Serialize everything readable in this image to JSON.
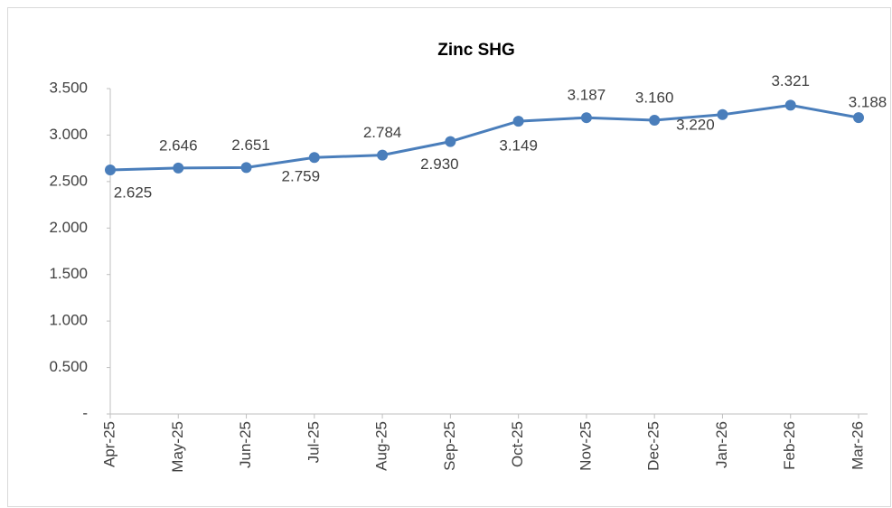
{
  "chart_data": {
    "type": "line",
    "title": "Zinc SHG",
    "categories": [
      "Apr-25",
      "May-25",
      "Jun-25",
      "Jul-25",
      "Aug-25",
      "Sep-25",
      "Oct-25",
      "Nov-25",
      "Dec-25",
      "Jan-26",
      "Feb-26",
      "Mar-26"
    ],
    "series": [
      {
        "name": "Zinc SHG",
        "color": "#4a7ebb",
        "values": [
          2.625,
          2.646,
          2.651,
          2.759,
          2.784,
          2.93,
          3.149,
          3.187,
          3.16,
          3.22,
          3.321,
          3.188
        ],
        "value_labels": [
          "2.625",
          "2.646",
          "2.651",
          "2.759",
          "2.784",
          "2.930",
          "3.149",
          "3.187",
          "3.160",
          "3.220",
          "3.321",
          "3.188"
        ]
      }
    ],
    "ylim": [
      0,
      3.5
    ],
    "yticks": [
      {
        "value": 0,
        "label": "-"
      },
      {
        "value": 0.5,
        "label": "0.500"
      },
      {
        "value": 1,
        "label": "1.000"
      },
      {
        "value": 1.5,
        "label": "1.500"
      },
      {
        "value": 2,
        "label": "2.000"
      },
      {
        "value": 2.5,
        "label": "2.500"
      },
      {
        "value": 3,
        "label": "3.000"
      },
      {
        "value": 3.5,
        "label": "3.500"
      }
    ],
    "grid": false
  }
}
